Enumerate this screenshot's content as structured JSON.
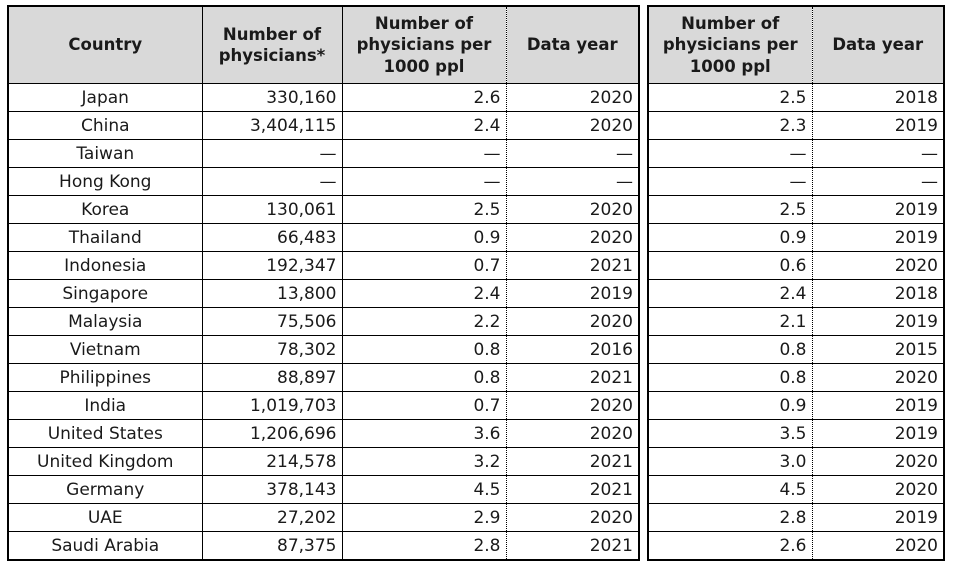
{
  "colors": {
    "header_bg": "#d9d9d9",
    "border": "#000000",
    "text": "#1a1a1a",
    "page_bg": "#ffffff"
  },
  "chart_data": {
    "type": "table",
    "title": "",
    "layout": "two bordered tables side by side with small gap; dotted vertical rule between each per-1000 column and its Data year column; header row shaded gray",
    "missing_value_marker": "—",
    "columns": [
      "Country",
      "Number of physicians*",
      "Number of physicians per 1000 ppl",
      "Data year",
      "Number of physicians per 1000 ppl",
      "Data year"
    ],
    "rows": [
      [
        "Japan",
        "330,160",
        "2.6",
        "2020",
        "2.5",
        "2018"
      ],
      [
        "China",
        "3,404,115",
        "2.4",
        "2020",
        "2.3",
        "2019"
      ],
      [
        "Taiwan",
        "—",
        "—",
        "—",
        "—",
        "—"
      ],
      [
        "Hong Kong",
        "—",
        "—",
        "—",
        "—",
        "—"
      ],
      [
        "Korea",
        "130,061",
        "2.5",
        "2020",
        "2.5",
        "2019"
      ],
      [
        "Thailand",
        "66,483",
        "0.9",
        "2020",
        "0.9",
        "2019"
      ],
      [
        "Indonesia",
        "192,347",
        "0.7",
        "2021",
        "0.6",
        "2020"
      ],
      [
        "Singapore",
        "13,800",
        "2.4",
        "2019",
        "2.4",
        "2018"
      ],
      [
        "Malaysia",
        "75,506",
        "2.2",
        "2020",
        "2.1",
        "2019"
      ],
      [
        "Vietnam",
        "78,302",
        "0.8",
        "2016",
        "0.8",
        "2015"
      ],
      [
        "Philippines",
        "88,897",
        "0.8",
        "2021",
        "0.8",
        "2020"
      ],
      [
        "India",
        "1,019,703",
        "0.7",
        "2020",
        "0.9",
        "2019"
      ],
      [
        "United States",
        "1,206,696",
        "3.6",
        "2020",
        "3.5",
        "2019"
      ],
      [
        "United Kingdom",
        "214,578",
        "3.2",
        "2021",
        "3.0",
        "2020"
      ],
      [
        "Germany",
        "378,143",
        "4.5",
        "2021",
        "4.5",
        "2020"
      ],
      [
        "UAE",
        "27,202",
        "2.9",
        "2020",
        "2.8",
        "2019"
      ],
      [
        "Saudi Arabia",
        "87,375",
        "2.8",
        "2021",
        "2.6",
        "2020"
      ]
    ]
  }
}
